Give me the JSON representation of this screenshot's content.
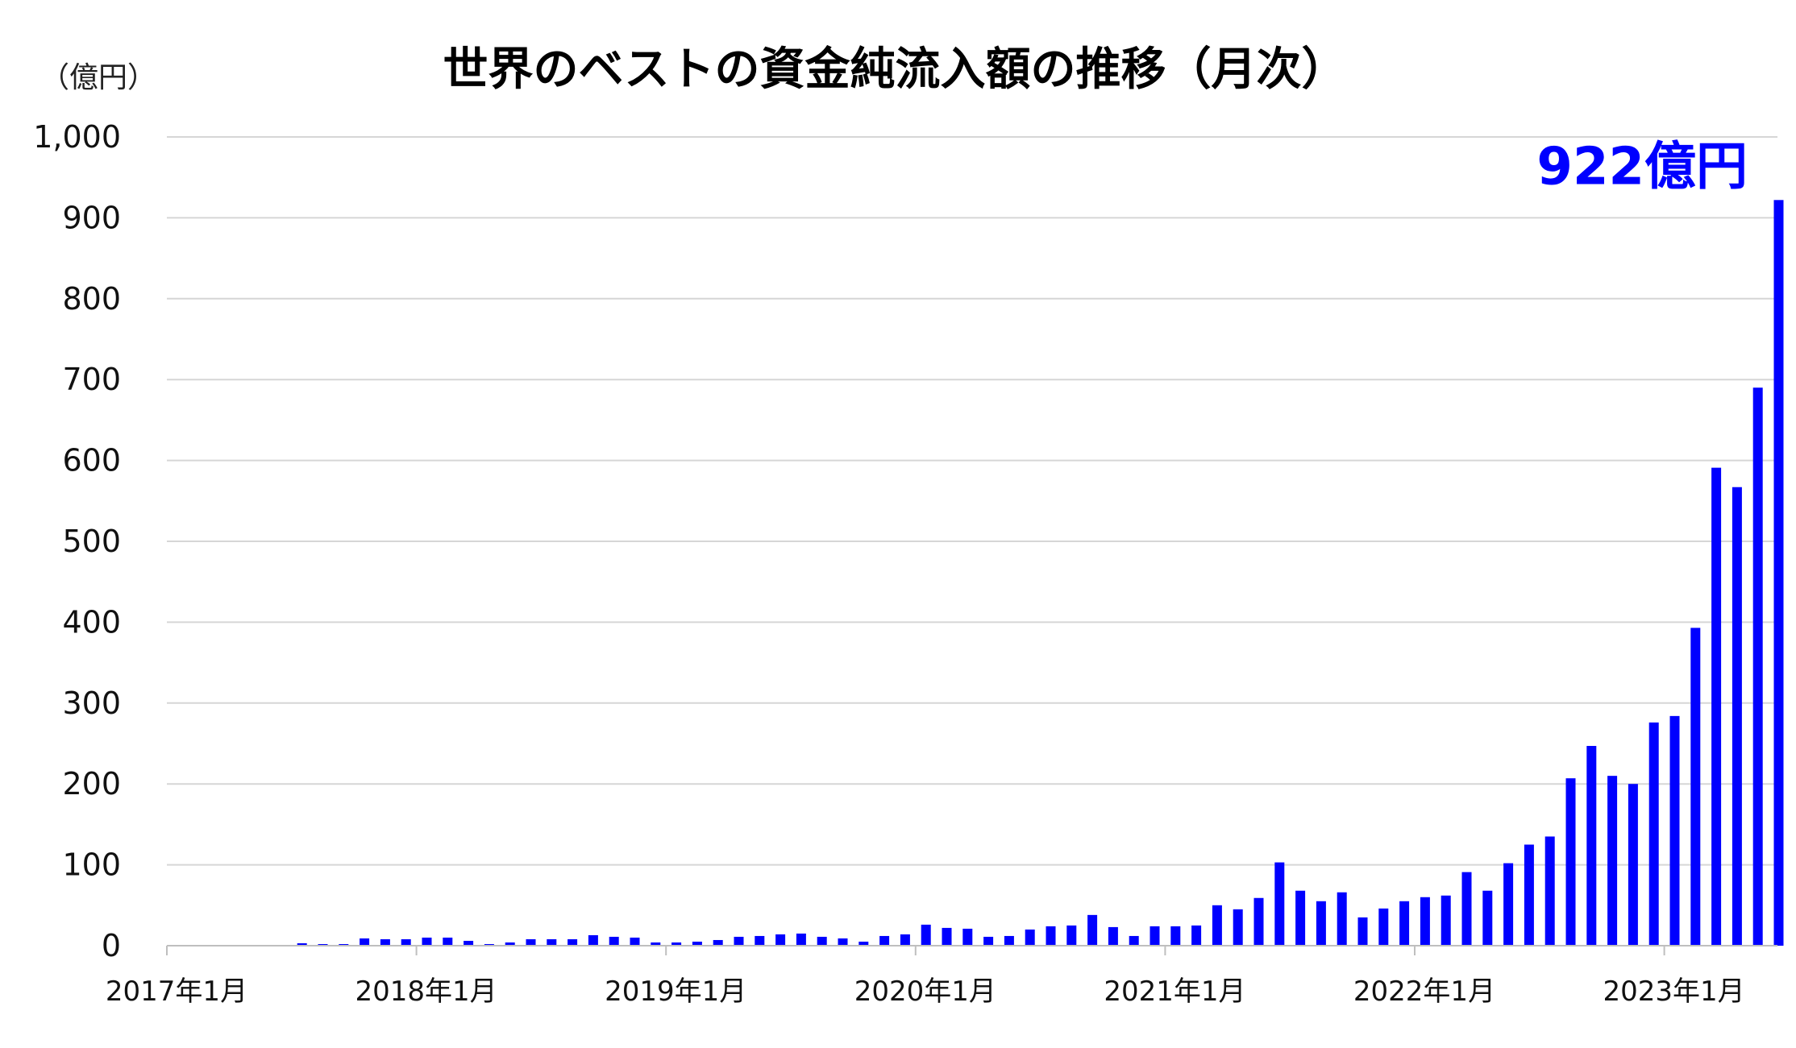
{
  "chart_data": {
    "type": "bar",
    "title": "世界のベストの資金純流入額の推移（月次）",
    "unit_label": "（億円）",
    "ylim": [
      0,
      1000
    ],
    "y_ticks": [
      0,
      100,
      200,
      300,
      400,
      500,
      600,
      700,
      800,
      900,
      1000
    ],
    "y_tick_labels": [
      "0",
      "100",
      "200",
      "300",
      "400",
      "500",
      "600",
      "700",
      "800",
      "900",
      "1,000"
    ],
    "x_tick_labels": [
      "2017年1月",
      "2018年1月",
      "2019年1月",
      "2020年1月",
      "2021年1月",
      "2022年1月",
      "2023年1月"
    ],
    "grid": true,
    "bar_color": "#0000ff",
    "annotation": {
      "text": "922億円",
      "color": "#0000ff",
      "target": "2023年6月"
    },
    "categories": [
      "2017年1月",
      "2017年2月",
      "2017年3月",
      "2017年4月",
      "2017年5月",
      "2017年6月",
      "2017年7月",
      "2017年8月",
      "2017年9月",
      "2017年10月",
      "2017年11月",
      "2017年12月",
      "2018年1月",
      "2018年2月",
      "2018年3月",
      "2018年4月",
      "2018年5月",
      "2018年6月",
      "2018年7月",
      "2018年8月",
      "2018年9月",
      "2018年10月",
      "2018年11月",
      "2018年12月",
      "2019年1月",
      "2019年2月",
      "2019年3月",
      "2019年4月",
      "2019年5月",
      "2019年6月",
      "2019年7月",
      "2019年8月",
      "2019年9月",
      "2019年10月",
      "2019年11月",
      "2019年12月",
      "2020年1月",
      "2020年2月",
      "2020年3月",
      "2020年4月",
      "2020年5月",
      "2020年6月",
      "2020年7月",
      "2020年8月",
      "2020年9月",
      "2020年10月",
      "2020年11月",
      "2020年12月",
      "2021年1月",
      "2021年2月",
      "2021年3月",
      "2021年4月",
      "2021年5月",
      "2021年6月",
      "2021年7月",
      "2021年8月",
      "2021年9月",
      "2021年10月",
      "2021年11月",
      "2021年12月",
      "2022年1月",
      "2022年2月",
      "2022年3月",
      "2022年4月",
      "2022年5月",
      "2022年6月",
      "2022年7月",
      "2022年8月",
      "2022年9月",
      "2022年10月",
      "2022年11月",
      "2022年12月",
      "2023年1月",
      "2023年2月",
      "2023年3月",
      "2023年4月",
      "2023年5月",
      "2023年6月"
    ],
    "values": [
      0,
      0,
      0,
      0,
      0,
      0,
      3,
      2,
      2,
      9,
      8,
      8,
      10,
      10,
      6,
      2,
      4,
      8,
      8,
      8,
      13,
      11,
      10,
      4,
      4,
      5,
      7,
      11,
      12,
      14,
      15,
      11,
      9,
      5,
      12,
      14,
      26,
      22,
      21,
      11,
      12,
      20,
      24,
      25,
      38,
      23,
      12,
      24,
      24,
      25,
      50,
      45,
      59,
      103,
      68,
      55,
      66,
      35,
      46,
      55,
      60,
      62,
      91,
      68,
      102,
      125,
      135,
      207,
      247,
      210,
      200,
      276,
      284,
      393,
      591,
      567,
      690,
      922
    ]
  }
}
